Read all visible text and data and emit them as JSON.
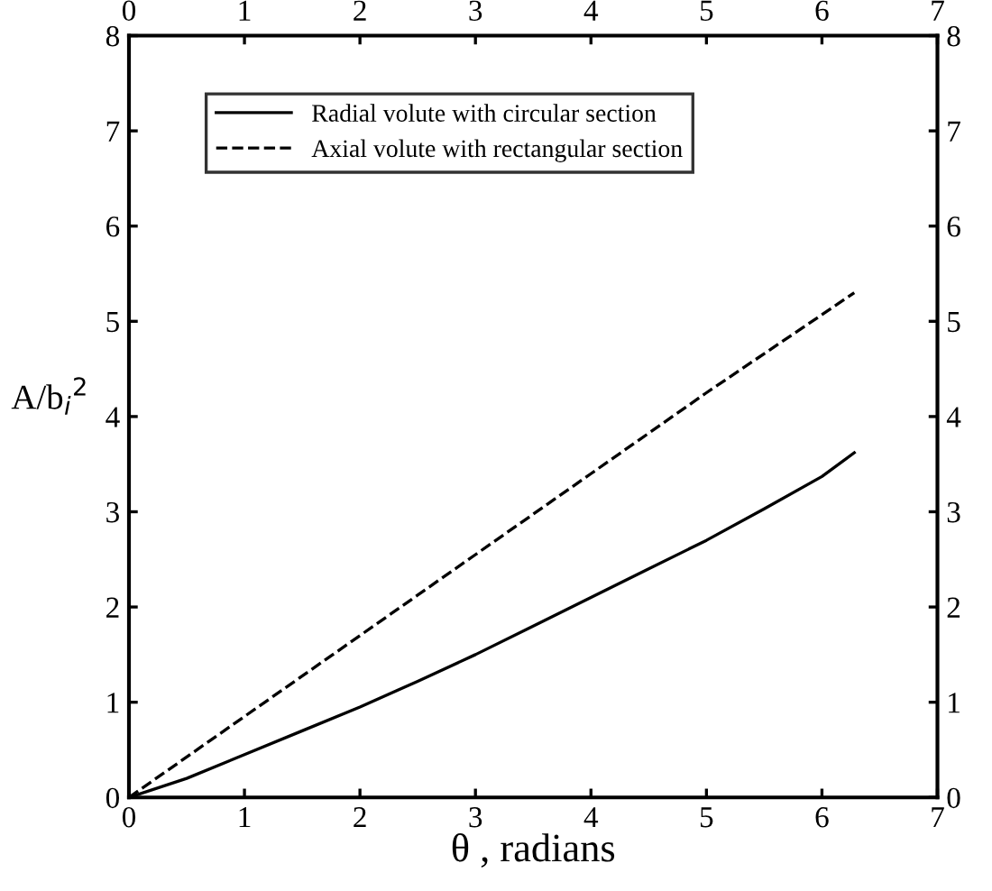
{
  "chart_data": {
    "type": "line",
    "xlabel": "θ , radians",
    "ylabel": "A/b$_{i}$$^{2}$",
    "series": [
      {
        "name": "Radial volute with circular section",
        "color": "#000000",
        "line_style": "solid",
        "x": [
          0,
          0.5,
          1,
          1.5,
          2,
          2.5,
          3,
          3.5,
          4,
          4.5,
          5,
          5.5,
          6,
          6.28
        ],
        "values": [
          0,
          0.2,
          0.45,
          0.7,
          0.95,
          1.22,
          1.5,
          1.8,
          2.1,
          2.4,
          2.7,
          3.03,
          3.37,
          3.62
        ]
      },
      {
        "name": "Axial volute with rectangular section",
        "color": "#000000",
        "line_style": "dashed",
        "x": [
          0,
          1,
          2,
          3,
          4,
          5,
          6,
          6.28
        ],
        "values": [
          0,
          0.85,
          1.7,
          2.55,
          3.4,
          4.25,
          5.07,
          5.3
        ]
      }
    ],
    "xlim": [
      0,
      7
    ],
    "xticks": [
      0,
      1,
      2,
      3,
      4,
      5,
      6,
      7
    ],
    "x2lim": [
      0,
      7
    ],
    "x2ticks": [
      0,
      1,
      2,
      3,
      4,
      5,
      6,
      7
    ],
    "ylim": [
      0,
      8
    ],
    "yticks": [
      0,
      1,
      2,
      3,
      4,
      5,
      6,
      7,
      8
    ],
    "y2lim": [
      0,
      8
    ],
    "y2ticks": [
      0,
      1,
      2,
      3,
      4,
      5,
      6,
      7,
      8
    ],
    "grid": false,
    "legend": "top left"
  }
}
